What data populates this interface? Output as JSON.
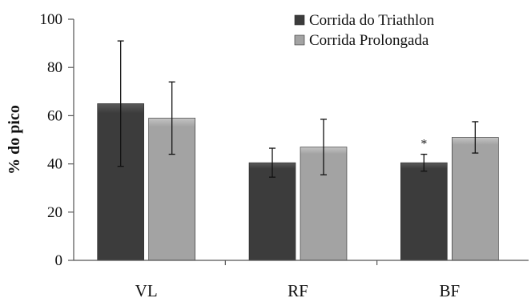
{
  "chart_data": {
    "type": "bar",
    "title": "",
    "xlabel": "",
    "ylabel": "% do pico",
    "ylim": [
      0,
      100
    ],
    "yticks": [
      0,
      20,
      40,
      60,
      80,
      100
    ],
    "categories": [
      "VL",
      "RF",
      "BF"
    ],
    "series": [
      {
        "name": "Corrida do Triathlon",
        "color": "#3c3c3c",
        "values": [
          65,
          40.5,
          40.5
        ],
        "error": [
          26,
          6,
          3.5
        ]
      },
      {
        "name": "Corrida Prolongada",
        "color": "#a3a3a3",
        "values": [
          59,
          47,
          51
        ],
        "error": [
          15,
          11.5,
          6.5
        ]
      }
    ],
    "annotations": [
      {
        "category": "BF",
        "series": 0,
        "text": "*"
      }
    ],
    "legend": "top-right",
    "grid": false
  }
}
